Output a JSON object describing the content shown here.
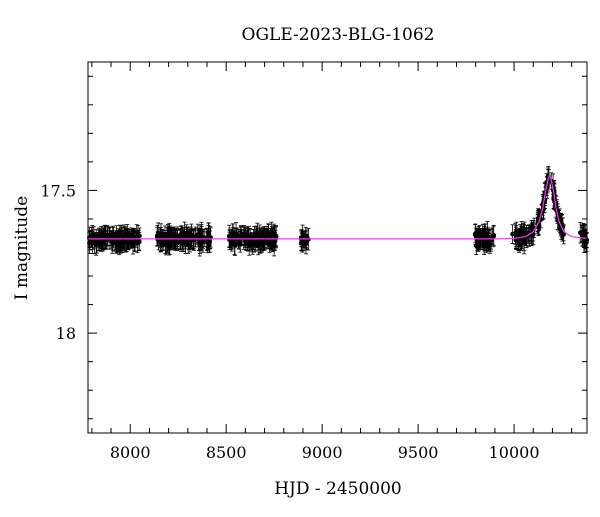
{
  "chart_data": {
    "type": "scatter",
    "title": "OGLE-2023-BLG-1062",
    "xlabel": "HJD - 2450000",
    "ylabel": "I magnitude",
    "xlim": [
      7780,
      10380
    ],
    "ylim": [
      18.35,
      17.05
    ],
    "y_inverted": true,
    "x_ticks": [
      8000,
      8500,
      9000,
      9500,
      10000
    ],
    "y_ticks": [
      17.5,
      18
    ],
    "x_tick_labels": [
      "8000",
      "8500",
      "9000",
      "9500",
      "10000"
    ],
    "y_tick_labels": [
      "17.5",
      "18"
    ],
    "baseline_mag": 17.67,
    "observing_seasons": [
      {
        "x_start": 7785,
        "x_end": 8050,
        "mag": 17.67
      },
      {
        "x_start": 8140,
        "x_end": 8420,
        "mag": 17.67
      },
      {
        "x_start": 8515,
        "x_end": 8760,
        "mag": 17.67
      },
      {
        "x_start": 8890,
        "x_end": 8930,
        "mag": 17.67
      },
      {
        "x_start": 9790,
        "x_end": 9900,
        "mag": 17.67
      },
      {
        "x_start": 9990,
        "x_end": 10260,
        "mag": 17.67
      },
      {
        "x_start": 10340,
        "x_end": 10380,
        "mag": 17.69
      }
    ],
    "event_peak": {
      "x": 10185,
      "mag": 17.44
    },
    "model_curve": {
      "color": "#ff33ff",
      "points": [
        {
          "x": 7780,
          "y": 17.67
        },
        {
          "x": 9900,
          "y": 17.67
        },
        {
          "x": 10000,
          "y": 17.668
        },
        {
          "x": 10060,
          "y": 17.662
        },
        {
          "x": 10100,
          "y": 17.645
        },
        {
          "x": 10130,
          "y": 17.61
        },
        {
          "x": 10150,
          "y": 17.56
        },
        {
          "x": 10165,
          "y": 17.5
        },
        {
          "x": 10178,
          "y": 17.46
        },
        {
          "x": 10185,
          "y": 17.445
        },
        {
          "x": 10192,
          "y": 17.46
        },
        {
          "x": 10205,
          "y": 17.5
        },
        {
          "x": 10218,
          "y": 17.56
        },
        {
          "x": 10235,
          "y": 17.61
        },
        {
          "x": 10260,
          "y": 17.645
        },
        {
          "x": 10300,
          "y": 17.662
        },
        {
          "x": 10380,
          "y": 17.668
        }
      ]
    },
    "point_color": "#000000",
    "typical_error": 0.03,
    "grid": false,
    "legend": "none"
  }
}
